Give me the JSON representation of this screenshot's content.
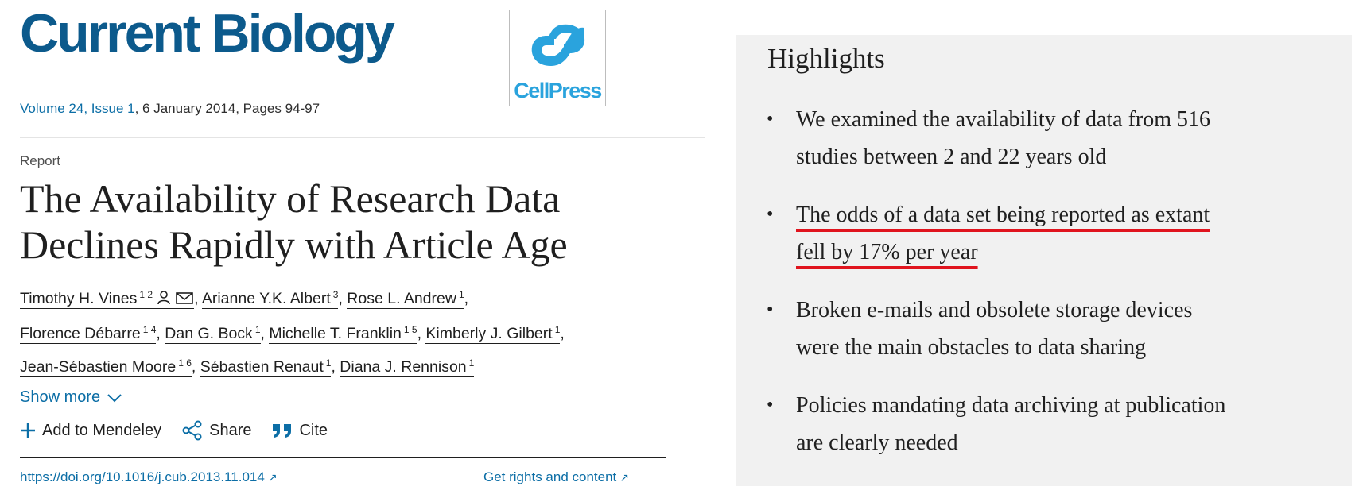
{
  "journal": {
    "title": "Current Biology",
    "publisher_logo_text": "CellPress"
  },
  "issue": {
    "volume_link": "Volume 24, Issue 1",
    "details": ", 6 January 2014, Pages 94-97"
  },
  "article": {
    "type": "Report",
    "title_line1": "The Availability of Research Data",
    "title_line2": "Declines Rapidly with Article Age",
    "authors": [
      {
        "name": "Timothy H. Vines",
        "affil": "1 2",
        "sep": ", "
      },
      {
        "name": "Arianne Y.K. Albert",
        "affil": "3",
        "sep": ", "
      },
      {
        "name": "Rose L. Andrew",
        "affil": "1",
        "sep": ","
      },
      {
        "name": "Florence Débarre",
        "affil": "1 4",
        "sep": ", "
      },
      {
        "name": "Dan G. Bock",
        "affil": "1",
        "sep": ", "
      },
      {
        "name": "Michelle T. Franklin",
        "affil": "1 5",
        "sep": ", "
      },
      {
        "name": "Kimberly J. Gilbert",
        "affil": "1",
        "sep": ","
      },
      {
        "name": "Jean-Sébastien Moore",
        "affil": "1 6",
        "sep": ", "
      },
      {
        "name": "Sébastien Renaut",
        "affil": "1",
        "sep": ", "
      },
      {
        "name": "Diana J. Rennison",
        "affil": "1",
        "sep": ""
      }
    ],
    "show_more_label": "Show more",
    "doi": "https://doi.org/10.1016/j.cub.2013.11.014",
    "rights_label": "Get rights and content"
  },
  "actions": {
    "mendeley_label": "Add to Mendeley",
    "share_label": "Share",
    "cite_label": "Cite"
  },
  "highlights": {
    "heading": "Highlights",
    "items": [
      {
        "line1": "We examined the availability of data from 516",
        "line2": "studies between 2 and 22 years old"
      },
      {
        "line1": "The odds of a data set being reported as extant",
        "line2": "fell by 17% per year"
      },
      {
        "line1": "Broken e-mails and obsolete storage devices",
        "line2": "were the main obstacles to data sharing"
      },
      {
        "line1": "Policies mandating data archiving at publication",
        "line2": "are clearly needed"
      }
    ]
  },
  "colors": {
    "journal_blue": "#0c5a8c",
    "link_blue": "#0c6ea6",
    "cellpress_blue": "#2aa3dd",
    "highlight_underline": "#e0141e",
    "highlights_panel_bg": "#f1f1f1"
  }
}
